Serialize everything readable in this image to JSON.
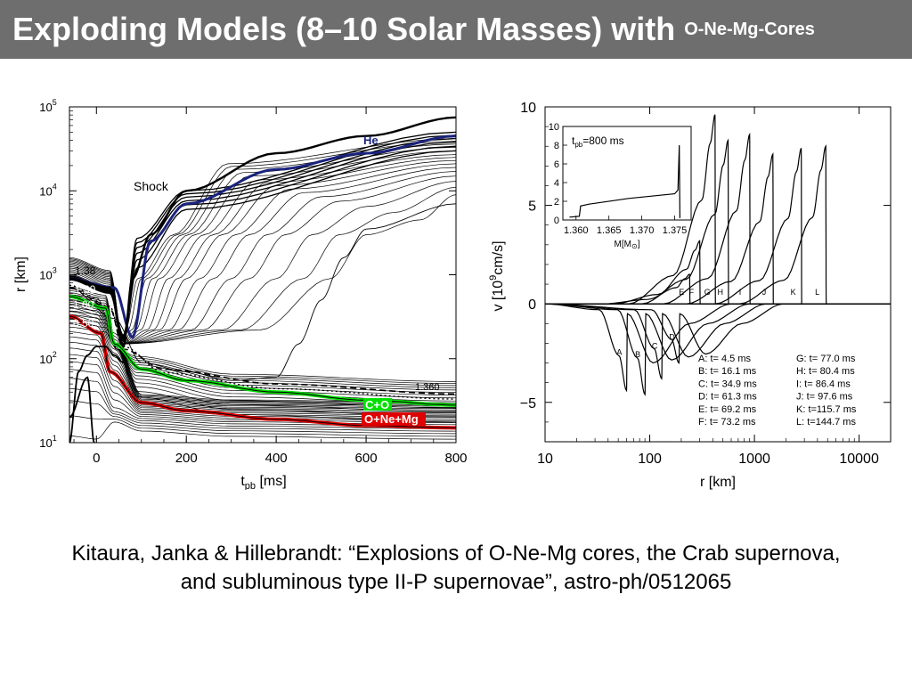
{
  "title": {
    "main": "Exploding Models (8–10 Solar Masses) with",
    "sub": "O-Ne-Mg-Cores",
    "background": "#6e6e6e",
    "color": "#ffffff"
  },
  "caption": {
    "line1": "Kitaura, Janka & Hillebrandt: “Explosions of O-Ne-Mg cores, the Crab supernova,",
    "line2": "and subluminous type II-P supernovae”, astro-ph/0512065"
  },
  "chart_data": [
    {
      "type": "line",
      "xlabel": "t_pb [ms]",
      "ylabel": "r [km]",
      "xlim": [
        -60,
        800
      ],
      "ylim": [
        10,
        100000
      ],
      "yscale": "log",
      "x_ticks": [
        "0",
        "200",
        "400",
        "600",
        "800"
      ],
      "y_ticks": [
        "10^1",
        "10^2",
        "10^3",
        "10^4",
        "10^5"
      ],
      "labels": {
        "shock": "Shock",
        "he": "He",
        "co": "C+O",
        "onemg": "O+Ne+Mg",
        "m138": "1.38",
        "m130": "1.30",
        "m100": "1.00",
        "m050": "0.50",
        "m1360": "1.360"
      },
      "colors": {
        "he": "#1a237e",
        "co": "#00e000",
        "onemg": "#e00000"
      },
      "series": [
        {
          "name": "Shock",
          "points": [
            [
              -60,
              900
            ],
            [
              30,
              700
            ],
            [
              60,
              140
            ],
            [
              80,
              900
            ],
            [
              120,
              3000
            ],
            [
              200,
              10000
            ],
            [
              400,
              28000
            ],
            [
              600,
              45000
            ],
            [
              800,
              75000
            ]
          ]
        },
        {
          "name": "He",
          "points": [
            [
              -60,
              900
            ],
            [
              40,
              700
            ],
            [
              80,
              180
            ],
            [
              120,
              2500
            ],
            [
              200,
              7000
            ],
            [
              400,
              18000
            ],
            [
              600,
              28000
            ],
            [
              800,
              45000
            ]
          ]
        },
        {
          "name": "C+O",
          "points": [
            [
              -60,
              550
            ],
            [
              20,
              400
            ],
            [
              40,
              150
            ],
            [
              100,
              75
            ],
            [
              200,
              55
            ],
            [
              400,
              40
            ],
            [
              600,
              32
            ],
            [
              800,
              28
            ]
          ]
        },
        {
          "name": "O+Ne+Mg",
          "points": [
            [
              -60,
              320
            ],
            [
              10,
              200
            ],
            [
              30,
              70
            ],
            [
              100,
              30
            ],
            [
              200,
              24
            ],
            [
              400,
              19
            ],
            [
              600,
              16
            ],
            [
              800,
              15
            ]
          ]
        },
        {
          "name": "1.360",
          "points": [
            [
              -60,
              700
            ],
            [
              40,
              300
            ],
            [
              100,
              90
            ],
            [
              200,
              70
            ],
            [
              300,
              55
            ],
            [
              400,
              60
            ],
            [
              450,
              150
            ],
            [
              500,
              500
            ],
            [
              550,
              1600
            ],
            [
              600,
              3500
            ],
            [
              800,
              7000
            ]
          ]
        }
      ]
    },
    {
      "type": "line",
      "xlabel": "r [km]",
      "ylabel": "v [10^9 cm/s]",
      "xscale": "log",
      "xlim": [
        10,
        20000
      ],
      "ylim": [
        -7,
        10
      ],
      "x_ticks": [
        "10",
        "100",
        "1000",
        "10000"
      ],
      "y_ticks": [
        "10",
        "5",
        "0",
        "−5"
      ],
      "series_labels": [
        "A",
        "B",
        "C",
        "D",
        "E",
        "F",
        "G",
        "H",
        "I",
        "J",
        "K",
        "L"
      ],
      "legend": [
        {
          "key": "A",
          "t_ms": 4.5,
          "text": "A: t=   4.5 ms"
        },
        {
          "key": "B",
          "t_ms": 16.1,
          "text": "B: t=  16.1 ms"
        },
        {
          "key": "C",
          "t_ms": 34.9,
          "text": "C: t=  34.9 ms"
        },
        {
          "key": "D",
          "t_ms": 61.3,
          "text": "D: t=  61.3 ms"
        },
        {
          "key": "E",
          "t_ms": 69.2,
          "text": "E: t=  69.2 ms"
        },
        {
          "key": "F",
          "t_ms": 73.2,
          "text": "F: t=  73.2 ms"
        },
        {
          "key": "G",
          "t_ms": 77.0,
          "text": "G: t=  77.0 ms"
        },
        {
          "key": "H",
          "t_ms": 80.4,
          "text": "H: t=  80.4 ms"
        },
        {
          "key": "I",
          "t_ms": 86.4,
          "text": "I: t=  86.4 ms"
        },
        {
          "key": "J",
          "t_ms": 97.6,
          "text": "J: t=  97.6 ms"
        },
        {
          "key": "K",
          "t_ms": 115.7,
          "text": "K: t=115.7 ms"
        },
        {
          "key": "L",
          "t_ms": 144.7,
          "text": "L: t=144.7 ms"
        }
      ],
      "legend_placement": "bottom-right",
      "shock_radii_km": [
        60,
        90,
        130,
        190,
        240,
        300,
        420,
        560,
        900,
        1500,
        2800,
        4800
      ],
      "peak_velocities": [
        -4.4,
        -4.6,
        -3.8,
        -3.0,
        1.5,
        3.2,
        9.6,
        8.3,
        8.6,
        7.6,
        7.9,
        8.0
      ],
      "inset": {
        "label": "t_pb=800 ms",
        "xlabel": "M[M_sun]",
        "xlim": [
          1.358,
          1.3775
        ],
        "ylim": [
          0,
          10
        ],
        "x_ticks": [
          "1.360",
          "1.365",
          "1.370",
          "1.375"
        ],
        "y_ticks": [
          "0",
          "2",
          "4",
          "6",
          "8",
          "10"
        ],
        "points": [
          [
            1.359,
            0.3
          ],
          [
            1.3605,
            0.4
          ],
          [
            1.3607,
            1.5
          ],
          [
            1.362,
            1.7
          ],
          [
            1.368,
            2.3
          ],
          [
            1.375,
            2.8
          ],
          [
            1.3755,
            3.2
          ],
          [
            1.3757,
            8.0
          ],
          [
            1.3758,
            0.2
          ]
        ]
      }
    }
  ]
}
